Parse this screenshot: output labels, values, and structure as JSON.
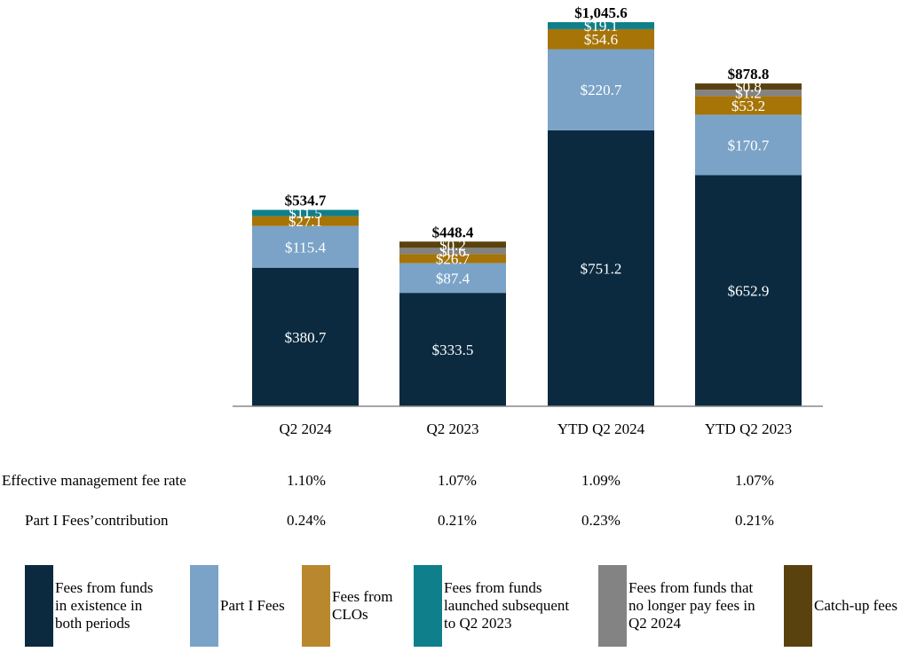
{
  "chart_data": {
    "type": "bar",
    "stacked": true,
    "categories": [
      "Q2 2024",
      "Q2 2023",
      "YTD Q2 2024",
      "YTD Q2 2023"
    ],
    "series": [
      {
        "name": "Fees from funds in existence in both periods",
        "color": "#0b2a40",
        "values": [
          380.7,
          333.5,
          751.2,
          652.9
        ],
        "labels": [
          "$380.7",
          "$333.5",
          "$751.2",
          "$652.9"
        ]
      },
      {
        "name": "Part I Fees",
        "color": "#7aa3c7",
        "values": [
          115.4,
          87.4,
          220.7,
          170.7
        ],
        "labels": [
          "$115.4",
          "$87.4",
          "$220.7",
          "$170.7"
        ]
      },
      {
        "name": "Fees from CLOs",
        "color": "#a67407",
        "values": [
          27.1,
          26.7,
          54.6,
          53.2
        ],
        "labels": [
          "$27.1",
          "$26.7",
          "$54.6",
          "$53.2"
        ]
      },
      {
        "name": "Fees from funds launched subsequent to Q2 2023",
        "color": "#0f7f8c",
        "values": [
          11.5,
          0,
          19.1,
          0
        ],
        "labels": [
          "$11.5",
          "",
          "$19.1",
          ""
        ]
      },
      {
        "name": "Fees from funds that no longer pay fees in Q2 2024",
        "color": "#838383",
        "values": [
          0,
          0.6,
          0,
          1.2
        ],
        "labels": [
          "",
          "$0.6",
          "",
          "$1.2"
        ]
      },
      {
        "name": "Catch-up fees",
        "color": "#5a420e",
        "values": [
          0,
          0.2,
          0,
          0.8
        ],
        "labels": [
          "",
          "$0.2",
          "",
          "$0.8"
        ]
      }
    ],
    "totals": [
      "$534.7",
      "$448.4",
      "$1,045.6",
      "$878.8"
    ],
    "total_values": [
      534.7,
      448.4,
      1045.6,
      878.8
    ],
    "ylim": [
      0,
      1045.6
    ],
    "min_segment_display_value": 17,
    "grid": false,
    "legend_position": "bottom"
  },
  "table_rows": [
    {
      "label": "Effective management fee rate",
      "values": [
        "1.10%",
        "1.07%",
        "1.09%",
        "1.07%"
      ]
    },
    {
      "label": "Part I Fees’contribution",
      "values": [
        "0.24%",
        "0.21%",
        "0.23%",
        "0.21%"
      ]
    }
  ],
  "legend": [
    {
      "text": "Fees from funds\nin existence in\nboth periods",
      "color": "#0b2a40"
    },
    {
      "text": "Part I Fees",
      "color": "#7aa3c7"
    },
    {
      "text": "Fees from\nCLOs",
      "color": "#b8872e"
    },
    {
      "text": "Fees from funds\nlaunched subsequent\nto Q2 2023",
      "color": "#0f7f8c"
    },
    {
      "text": "Fees from funds that\nno longer pay fees in\nQ2 2024",
      "color": "#838383"
    },
    {
      "text": "Catch-up fees",
      "color": "#5a420e"
    }
  ]
}
